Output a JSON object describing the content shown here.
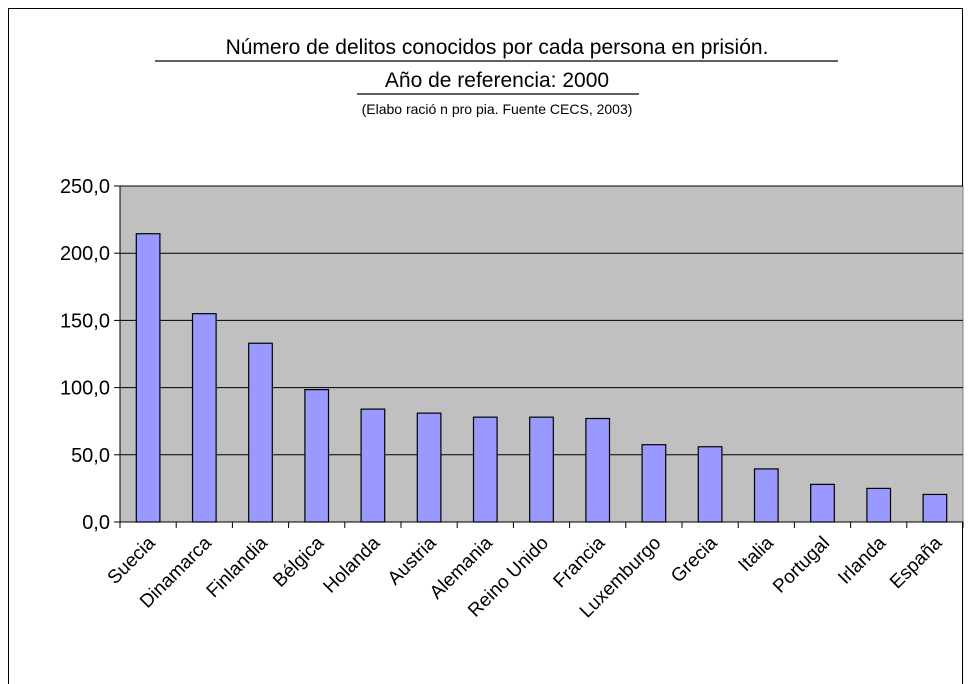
{
  "chart_data": {
    "type": "bar",
    "title": "Número de delitos conocidos por cada persona en prisión.",
    "title_line2": "Año de referencia: 2000",
    "subtitle": "(Elabo ració n pro pia. Fuente CECS, 2003)",
    "categories": [
      "Suecia",
      "Dinamarca",
      "Finlandia",
      "Bélgica",
      "Holanda",
      "Austria",
      "Alemania",
      "Reino Unido",
      "Francia",
      "Luxemburgo",
      "Grecia",
      "Italia",
      "Portugal",
      "Irlanda",
      "España"
    ],
    "values": [
      214.5,
      155.0,
      133.0,
      98.5,
      84.0,
      81.0,
      78.0,
      78.0,
      77.0,
      57.5,
      56.0,
      39.5,
      28.0,
      25.0,
      20.5
    ],
    "ylim": [
      0,
      250
    ],
    "yticks": [
      "0,0",
      "50,0",
      "100,0",
      "150,0",
      "200,0",
      "250,0"
    ],
    "grid": true,
    "legend": "none",
    "colors": {
      "bar_fill": "#9999ff",
      "bar_stroke": "#000000",
      "plot_background": "#c0c0c0",
      "gridline": "#000000"
    }
  }
}
